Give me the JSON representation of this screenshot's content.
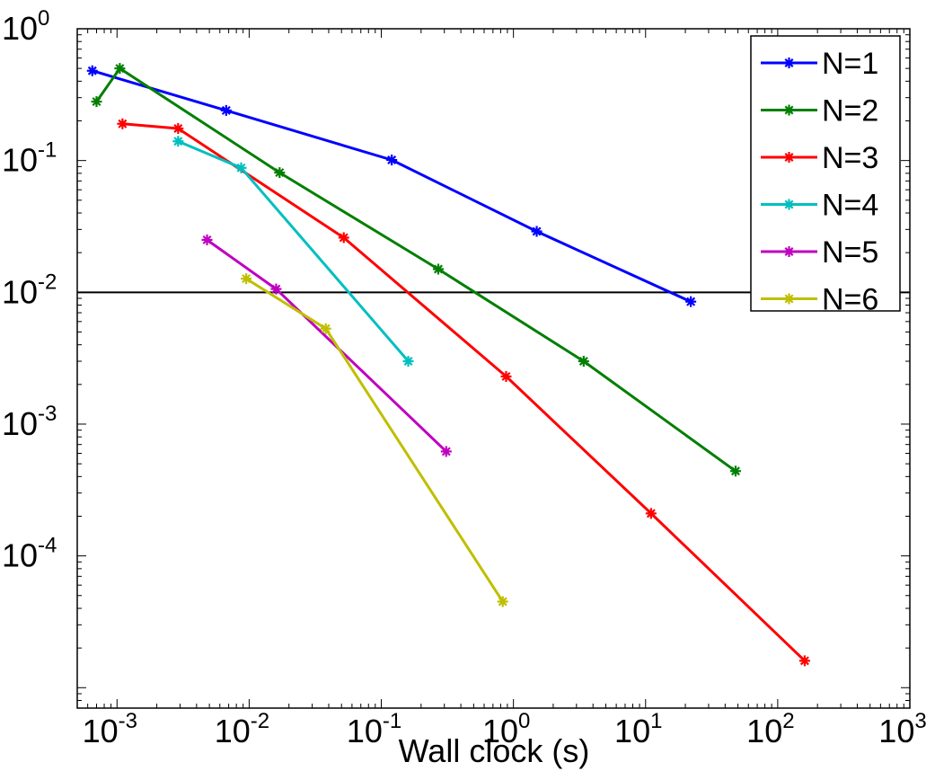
{
  "chart_data": {
    "type": "line",
    "title": "",
    "xlabel": "Wall clock (s)",
    "ylabel": "",
    "xscale": "log",
    "yscale": "log",
    "xlim": [
      0.0005,
      1000
    ],
    "ylim": [
      7e-06,
      1
    ],
    "x_tick_labels": [
      {
        "value": 0.001,
        "base": "10",
        "exp": "-3"
      },
      {
        "value": 0.01,
        "base": "10",
        "exp": "-2"
      },
      {
        "value": 0.1,
        "base": "10",
        "exp": "-1"
      },
      {
        "value": 1,
        "base": "10",
        "exp": "0"
      },
      {
        "value": 10,
        "base": "10",
        "exp": "1"
      },
      {
        "value": 100,
        "base": "10",
        "exp": "2"
      },
      {
        "value": 1000,
        "base": "10",
        "exp": "3"
      }
    ],
    "y_tick_labels": [
      {
        "value": 0.0001,
        "base": "10",
        "exp": "-4"
      },
      {
        "value": 0.001,
        "base": "10",
        "exp": "-3"
      },
      {
        "value": 0.01,
        "base": "10",
        "exp": "-2"
      },
      {
        "value": 0.1,
        "base": "10",
        "exp": "-1"
      },
      {
        "value": 1,
        "base": "10",
        "exp": "0"
      }
    ],
    "reference_line": {
      "y": 0.01,
      "color": "#000000"
    },
    "grid": false,
    "legend": "top-right",
    "series": [
      {
        "name": "N=1",
        "color": "#0000ff",
        "points": [
          [
            0.00065,
            0.48
          ],
          [
            0.0067,
            0.24
          ],
          [
            0.12,
            0.101
          ],
          [
            1.5,
            0.029
          ],
          [
            22,
            0.0085
          ]
        ]
      },
      {
        "name": "N=2",
        "color": "#007f00",
        "points": [
          [
            0.0007,
            0.28
          ],
          [
            0.00105,
            0.5
          ],
          [
            0.017,
            0.081
          ],
          [
            0.27,
            0.015
          ],
          [
            3.4,
            0.003
          ],
          [
            48,
            0.00044
          ]
        ]
      },
      {
        "name": "N=3",
        "color": "#ff0000",
        "points": [
          [
            0.0011,
            0.19
          ],
          [
            0.0029,
            0.175
          ],
          [
            0.052,
            0.026
          ],
          [
            0.88,
            0.0023
          ],
          [
            11,
            0.00021
          ],
          [
            160,
            1.6e-05
          ]
        ]
      },
      {
        "name": "N=4",
        "color": "#00bfbf",
        "points": [
          [
            0.0029,
            0.14
          ],
          [
            0.0087,
            0.088
          ],
          [
            0.16,
            0.003
          ]
        ]
      },
      {
        "name": "N=5",
        "color": "#bf00bf",
        "points": [
          [
            0.0048,
            0.025
          ],
          [
            0.016,
            0.0106
          ],
          [
            0.31,
            0.00062
          ]
        ]
      },
      {
        "name": "N=6",
        "color": "#bfbf00",
        "points": [
          [
            0.0095,
            0.0127
          ],
          [
            0.038,
            0.0053
          ],
          [
            0.83,
            4.5e-05
          ]
        ]
      }
    ]
  }
}
